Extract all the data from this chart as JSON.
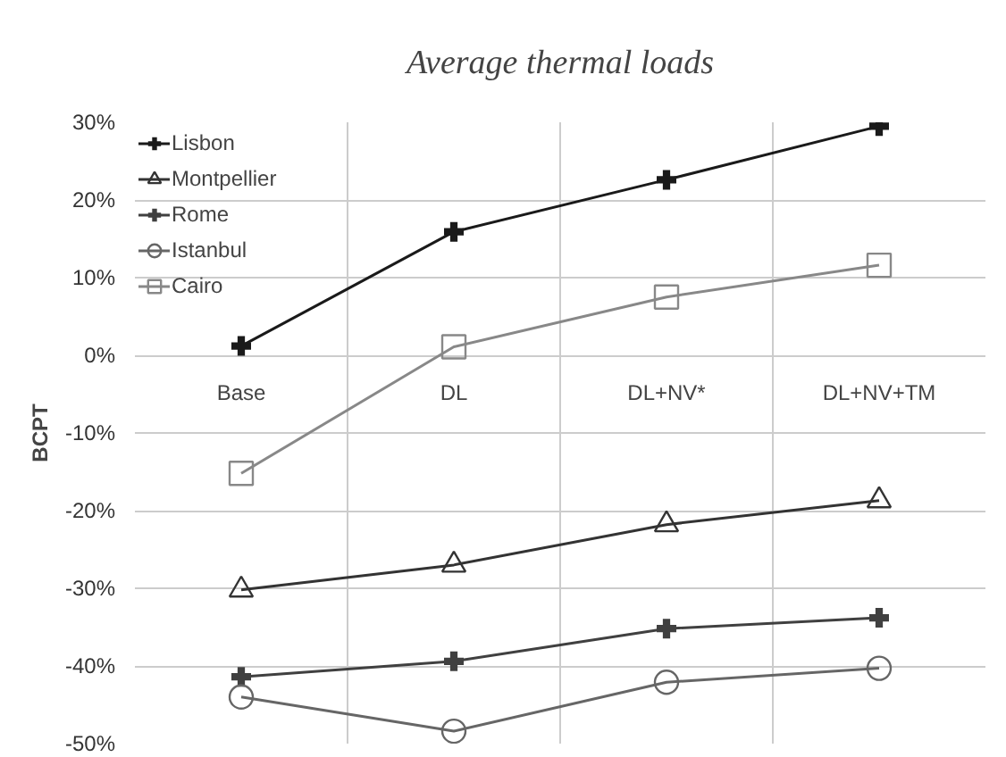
{
  "chart_data": {
    "type": "line",
    "title": "Average thermal loads",
    "ylabel": "BCPT",
    "categories": [
      "Base",
      "DL",
      "DL+NV*",
      "DL+NV+TM"
    ],
    "series": [
      {
        "name": "Lisbon",
        "color": "#1a1a1a",
        "marker": "cross",
        "values": [
          1.2,
          15.9,
          22.6,
          29.5
        ]
      },
      {
        "name": "Montpellier",
        "color": "#333333",
        "marker": "triangle",
        "values": [
          -30.2,
          -27.0,
          -21.8,
          -18.7
        ]
      },
      {
        "name": "Rome",
        "color": "#404040",
        "marker": "cross",
        "values": [
          -41.4,
          -39.4,
          -35.2,
          -33.8
        ]
      },
      {
        "name": "Istanbul",
        "color": "#666666",
        "marker": "circle",
        "values": [
          -44.0,
          -48.4,
          -42.1,
          -40.3
        ]
      },
      {
        "name": "Cairo",
        "color": "#888888",
        "marker": "square",
        "values": [
          -15.2,
          1.1,
          7.5,
          11.6
        ]
      }
    ],
    "ylim": [
      -50,
      30
    ],
    "yticks": [
      {
        "value": -50,
        "label": "-50%"
      },
      {
        "value": -40,
        "label": "-40%"
      },
      {
        "value": -30,
        "label": "-30%"
      },
      {
        "value": -20,
        "label": "-20%"
      },
      {
        "value": -10,
        "label": "-10%"
      },
      {
        "value": 0,
        "label": "0%"
      },
      {
        "value": 10,
        "label": "10%"
      },
      {
        "value": 20,
        "label": "20%"
      },
      {
        "value": 30,
        "label": "30%"
      }
    ],
    "grid": true,
    "legend": "top left",
    "line_style": "solid"
  }
}
